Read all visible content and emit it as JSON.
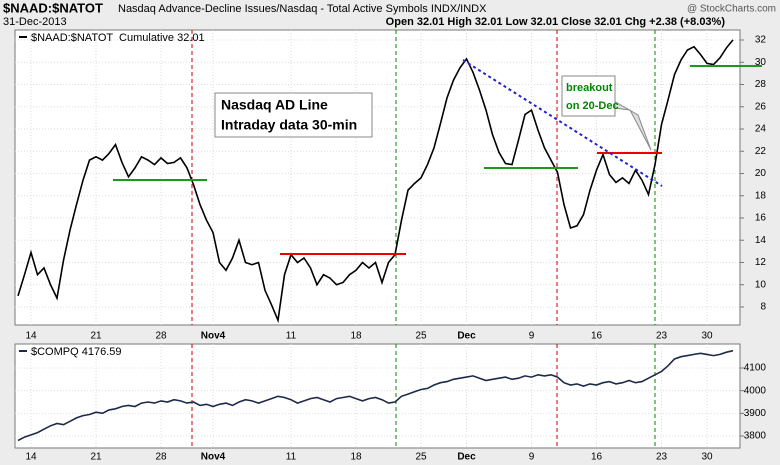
{
  "header": {
    "symbol": "$NAAD:$NATOT",
    "description": "Nasdaq Advance-Decline Issues/Nasdaq - Total Active Symbols INDX/INDX",
    "date": "31-Dec-2013",
    "quote": "Open 32.01 High 32.01 Low 32.01 Close 32.01 Chg +2.38 (+8.03%)",
    "source": "@ StockCharts.com"
  },
  "chart_data": [
    {
      "type": "line",
      "annotations": [
        "Nasdaq AD Line",
        "Intraday data 30-min"
      ],
      "callout": [
        "breakout",
        "on 20-Dec"
      ],
      "categories": [
        null,
        null,
        "14",
        null,
        null,
        null,
        null,
        null,
        null,
        null,
        null,
        null,
        "21",
        null,
        null,
        null,
        null,
        null,
        null,
        null,
        null,
        null,
        "28",
        null,
        null,
        null,
        null,
        null,
        null,
        null,
        "Nov4",
        null,
        null,
        null,
        null,
        null,
        null,
        null,
        null,
        null,
        null,
        null,
        "11",
        null,
        null,
        null,
        null,
        null,
        null,
        null,
        null,
        null,
        "18",
        null,
        null,
        null,
        null,
        null,
        null,
        null,
        null,
        null,
        "25",
        null,
        null,
        null,
        null,
        null,
        null,
        "Dec",
        null,
        null,
        null,
        null,
        null,
        null,
        null,
        null,
        null,
        "9",
        null,
        null,
        null,
        null,
        null,
        null,
        null,
        null,
        null,
        "16",
        null,
        null,
        null,
        null,
        null,
        null,
        null,
        null,
        null,
        "23",
        null,
        null,
        null,
        null,
        null,
        null,
        "30",
        null,
        null,
        null,
        null
      ],
      "series": [
        {
          "name": "$NAAD:$NATOT  Cumulative 32.01",
          "color": "#000000",
          "values": [
            9.0,
            10.9,
            12.9,
            10.9,
            11.5,
            10.0,
            8.8,
            12.2,
            14.9,
            17.2,
            19.4,
            21.2,
            21.5,
            21.2,
            21.8,
            22.6,
            21.0,
            19.7,
            20.5,
            21.5,
            21.2,
            20.8,
            21.4,
            20.9,
            21.0,
            21.4,
            20.5,
            19.0,
            17.2,
            15.8,
            14.7,
            12.0,
            11.3,
            12.4,
            14.0,
            12.0,
            11.8,
            12.0,
            9.5,
            8.2,
            6.8,
            10.9,
            12.7,
            12.0,
            12.4,
            11.5,
            10.0,
            10.9,
            10.6,
            10.0,
            10.2,
            10.9,
            11.3,
            12.0,
            11.5,
            12.0,
            10.2,
            12.0,
            12.7,
            15.8,
            18.5,
            19.1,
            19.6,
            20.8,
            22.3,
            24.5,
            26.8,
            28.4,
            29.5,
            30.3,
            29.1,
            27.5,
            25.7,
            23.5,
            21.9,
            20.9,
            20.8,
            23.0,
            25.3,
            25.7,
            23.9,
            22.3,
            21.2,
            20.1,
            17.2,
            15.1,
            15.3,
            16.3,
            18.5,
            20.3,
            21.7,
            19.9,
            19.2,
            19.6,
            19.1,
            20.3,
            19.4,
            18.1,
            20.8,
            24.4,
            26.6,
            28.9,
            30.2,
            31.1,
            31.4,
            30.7,
            29.9,
            29.8,
            30.4,
            31.3,
            32.01
          ]
        }
      ],
      "ylim": [
        6.38,
        32.9
      ],
      "yticks": [
        8,
        10,
        12,
        14,
        16,
        18,
        20,
        22,
        24,
        26,
        28,
        30,
        32
      ],
      "grid": true
    },
    {
      "type": "line",
      "series": [
        {
          "name": "$COMPQ 4176.59",
          "color": "#1f2a4a",
          "values": [
            3780,
            3795,
            3805,
            3815,
            3830,
            3845,
            3855,
            3850,
            3865,
            3880,
            3890,
            3895,
            3905,
            3900,
            3915,
            3920,
            3930,
            3935,
            3930,
            3945,
            3950,
            3945,
            3955,
            3950,
            3960,
            3955,
            3945,
            3950,
            3935,
            3940,
            3930,
            3940,
            3945,
            3935,
            3950,
            3960,
            3955,
            3945,
            3955,
            3965,
            3975,
            3970,
            3960,
            3945,
            3955,
            3965,
            3970,
            3960,
            3950,
            3965,
            3970,
            3975,
            3965,
            3955,
            3965,
            3970,
            3960,
            3945,
            3950,
            3975,
            3985,
            3995,
            4005,
            4010,
            4025,
            4035,
            4040,
            4050,
            4055,
            4060,
            4065,
            4055,
            4045,
            4050,
            4055,
            4060,
            4050,
            4055,
            4065,
            4060,
            4070,
            4065,
            4070,
            4060,
            4035,
            4025,
            4030,
            4020,
            4030,
            4025,
            4035,
            4040,
            4030,
            4035,
            4045,
            4035,
            4040,
            4055,
            4070,
            4085,
            4110,
            4140,
            4150,
            4155,
            4160,
            4165,
            4160,
            4155,
            4160,
            4170,
            4176.59
          ]
        }
      ],
      "ylim": [
        3747,
        4206
      ],
      "yticks": [
        3800,
        3900,
        4000,
        4100
      ],
      "grid": true
    }
  ]
}
